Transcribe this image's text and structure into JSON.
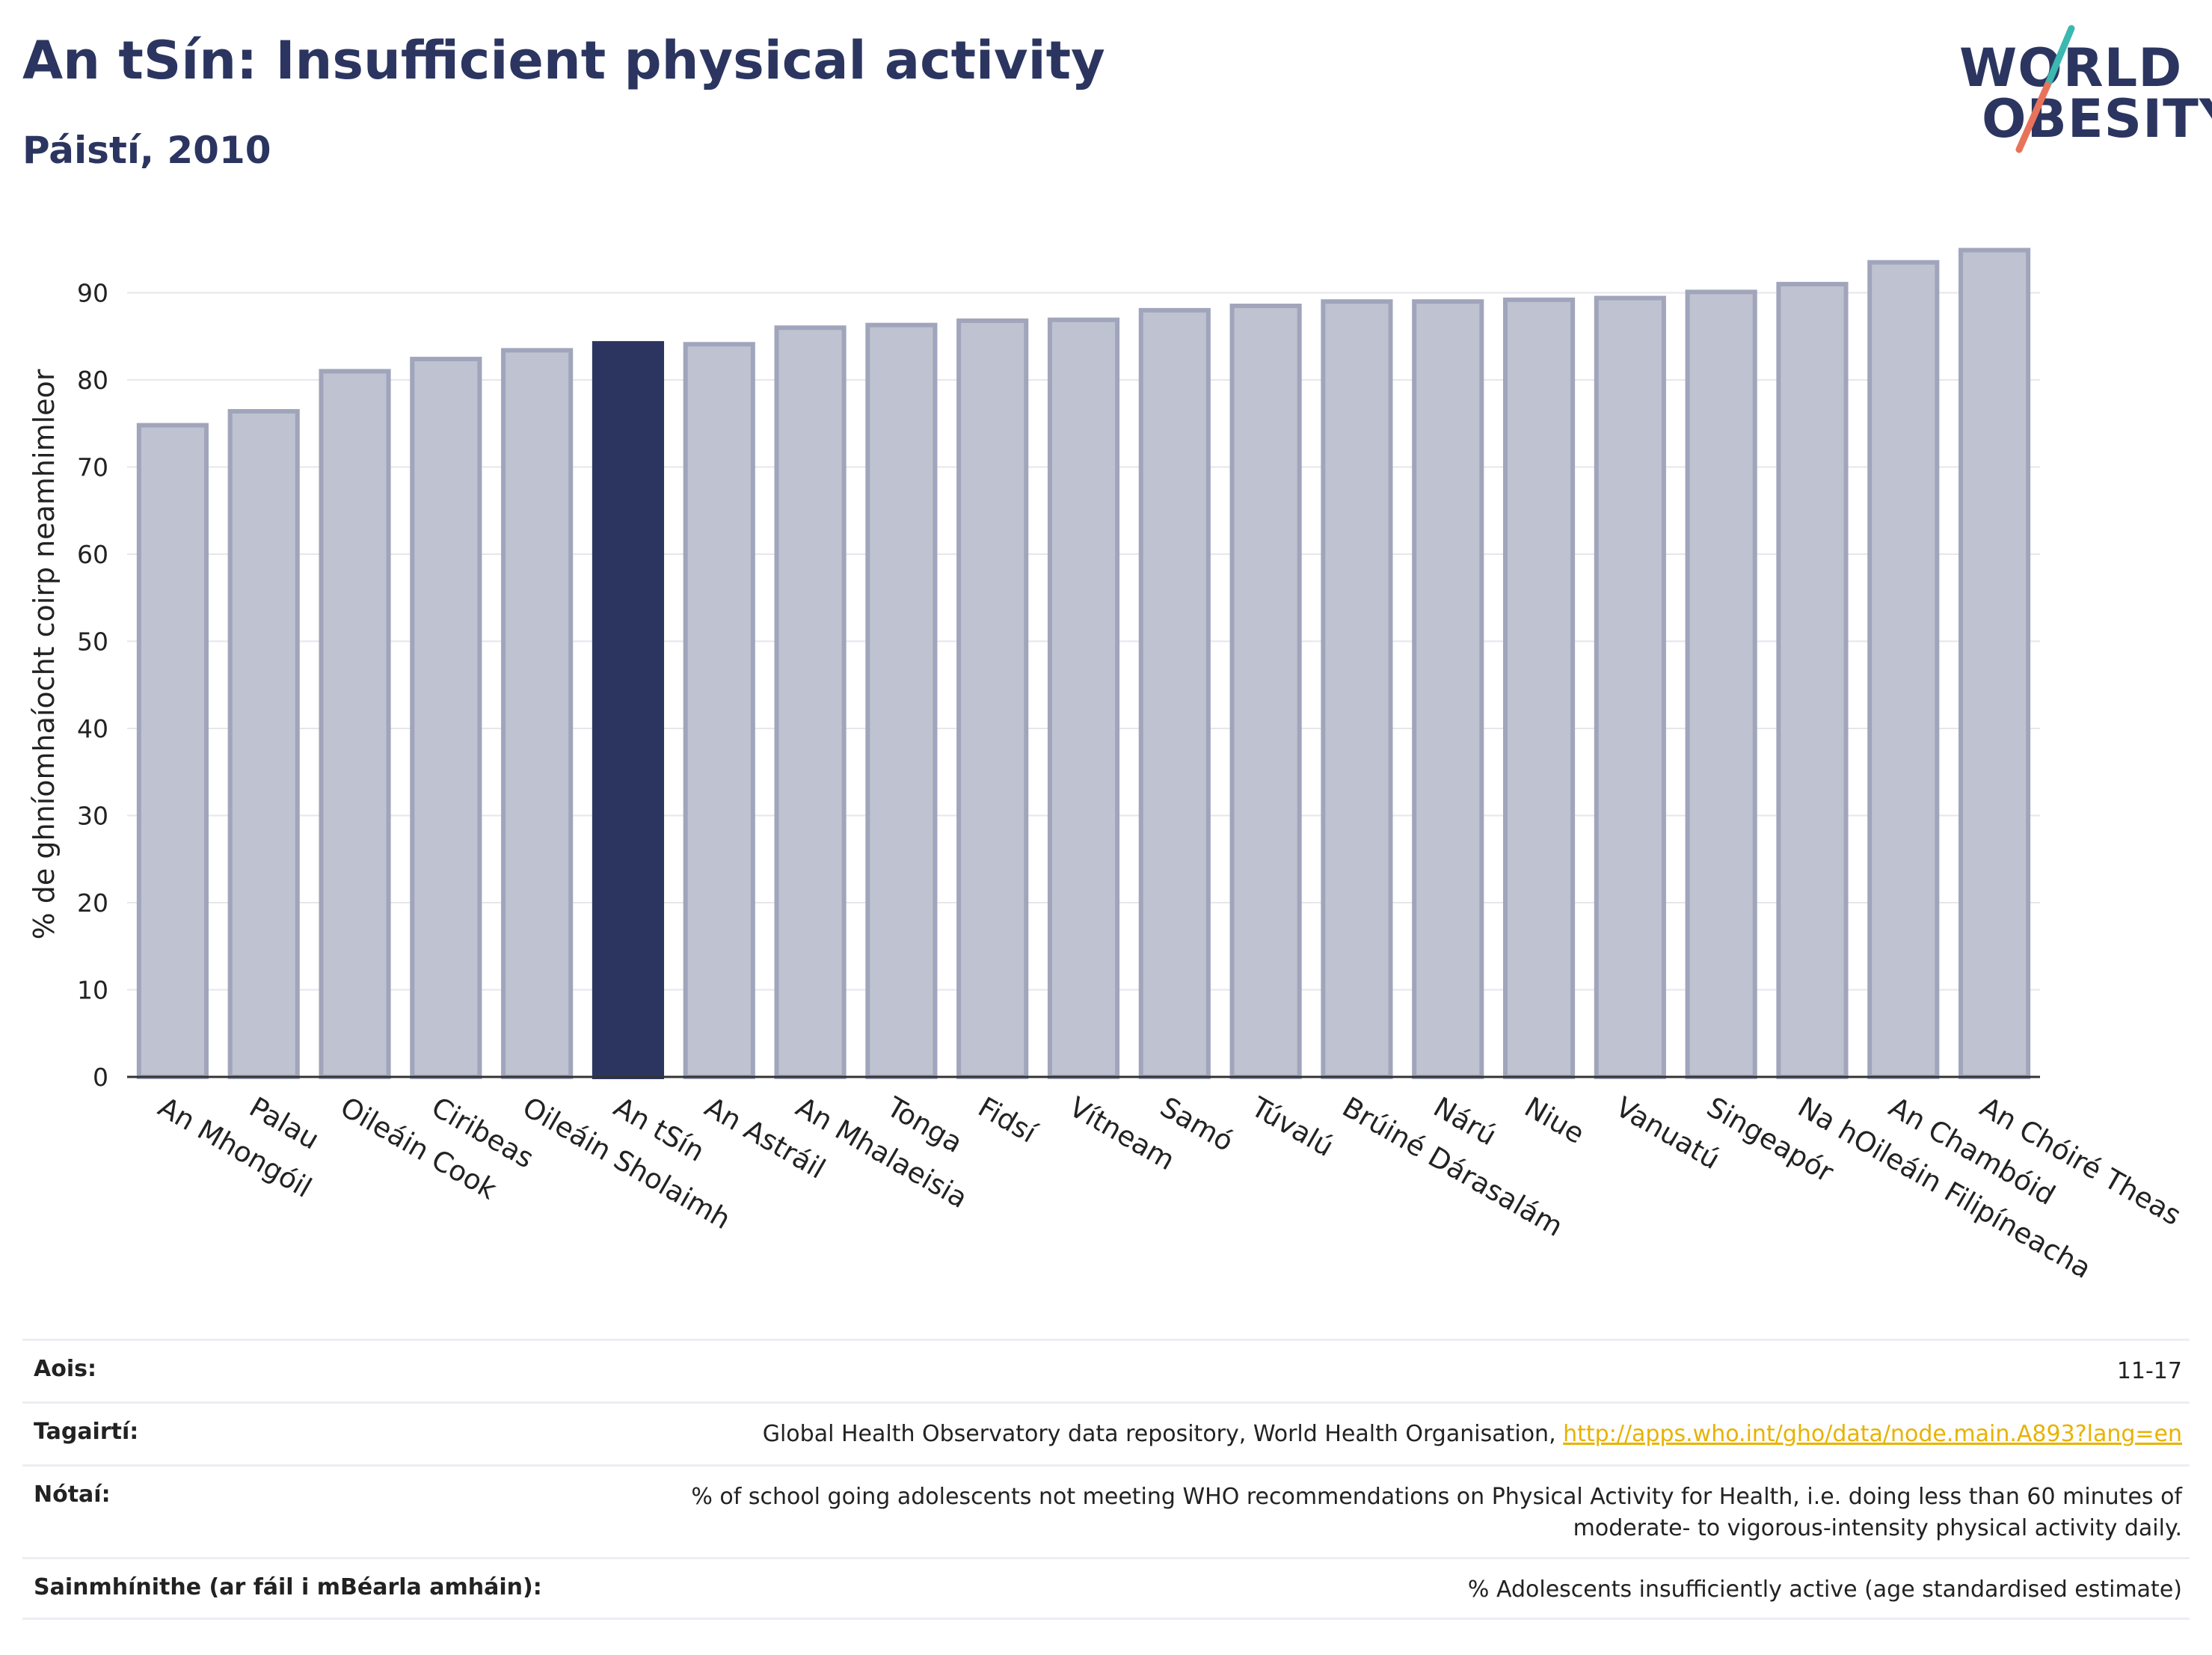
{
  "header": {
    "title": "An tSín: Insufficient physical activity",
    "subtitle": "Páistí, 2010"
  },
  "logo": {
    "line1": "WORLD",
    "line2": "OBESITY",
    "colors": {
      "text": "#2b3560",
      "slash_top": "#3bb8b0",
      "slash_bottom": "#e8735a"
    }
  },
  "colors": {
    "bar_fill": "#bfc2d0",
    "bar_stroke": "#a0a5bb",
    "highlight_fill": "#2b3560",
    "grid": "#e6e6ec",
    "axis": "#333333",
    "link": "#e8b200"
  },
  "chart_data": {
    "type": "bar",
    "ylabel": "% de ghníomhaíocht coirp neamhimleor",
    "ylim": [
      0,
      97
    ],
    "yticks": [
      0,
      10,
      20,
      30,
      40,
      50,
      60,
      70,
      80,
      90
    ],
    "grid": true,
    "highlight": "An tSín",
    "categories": [
      "An Mhongóil",
      "Palau",
      "Oileáin Cook",
      "Ciribeas",
      "Oileáin Sholaimh",
      "An tSín",
      "An Astráil",
      "An Mhalaeisia",
      "Tonga",
      "Fidsí",
      "Vítneam",
      "Samó",
      "Túvalú",
      "Brúiné Dárasalám",
      "Nárú",
      "Niue",
      "Vanuatú",
      "Singeapór",
      "Na hOileáin Filipíneacha",
      "An Chambóid",
      "An Chóiré Theas"
    ],
    "values": [
      74.8,
      76.4,
      81.0,
      82.4,
      83.4,
      84.2,
      84.1,
      86.0,
      86.3,
      86.8,
      86.9,
      88.0,
      88.5,
      89.0,
      89.0,
      89.2,
      89.4,
      90.1,
      91.0,
      93.5,
      94.9
    ]
  },
  "info": {
    "age_label": "Aois:",
    "age_value": "11-17",
    "refs_label": "Tagairtí:",
    "refs_text": "Global Health Observatory data repository, World Health Organisation, ",
    "refs_link": "http://apps.who.int/gho/data/node.main.A893?lang=en",
    "notes_label": "Nótaí:",
    "notes_line1": "% of school going adolescents not meeting WHO recommendations on Physical Activity for Health, i.e. doing less than 60 minutes of",
    "notes_line2": "moderate- to vigorous-intensity physical activity daily.",
    "defs_label": "Sainmhínithe (ar fáil i mBéarla amháin):",
    "defs_value": "% Adolescents insufficiently active (age standardised estimate)"
  }
}
